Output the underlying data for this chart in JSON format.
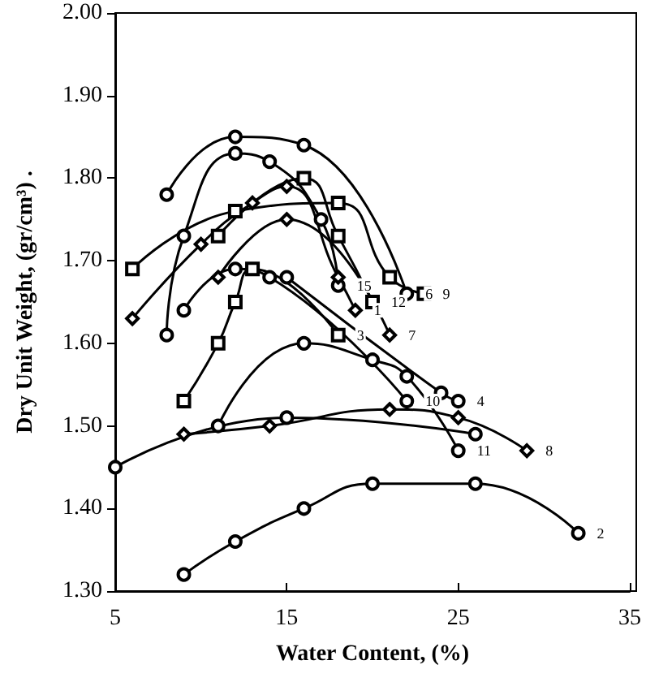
{
  "chart_data": {
    "type": "line",
    "xlabel": "Water Content, (%)",
    "ylabel": "Dry Unit Weight, (gr/cm³) .",
    "xlim": [
      5,
      35
    ],
    "xticks": [
      5,
      15,
      25,
      35
    ],
    "ylim": [
      1.3,
      2.0
    ],
    "yticks": [
      {
        "value": 1.3,
        "label": "1.30"
      },
      {
        "value": 1.4,
        "label": "1.40"
      },
      {
        "value": 1.5,
        "label": "1.50"
      },
      {
        "value": 1.6,
        "label": "1.60"
      },
      {
        "value": 1.7,
        "label": "1.70"
      },
      {
        "value": 1.8,
        "label": "1.80"
      },
      {
        "value": 1.9,
        "label": "1.90"
      },
      {
        "value": 2.0,
        "label": "2.00"
      }
    ],
    "grid": false,
    "legend": false,
    "series": [
      {
        "name": "2",
        "color": "#000000",
        "marker": "circle",
        "x": [
          9,
          12,
          16,
          20,
          26,
          32
        ],
        "values": [
          1.32,
          1.36,
          1.4,
          1.43,
          1.43,
          1.37
        ]
      },
      {
        "name": "6",
        "color": "#000000",
        "marker": "circle",
        "x": [
          8,
          12,
          16,
          22
        ],
        "values": [
          1.78,
          1.85,
          1.84,
          1.66
        ]
      },
      {
        "name": "9",
        "color": "#000000",
        "marker": "square",
        "x": [
          6,
          12,
          18,
          21,
          23
        ],
        "values": [
          1.69,
          1.76,
          1.77,
          1.68,
          1.66
        ]
      },
      {
        "name": "15",
        "color": "#000000",
        "marker": "circle",
        "x": [
          8,
          9,
          12,
          14,
          17,
          18
        ],
        "values": [
          1.61,
          1.73,
          1.83,
          1.82,
          1.75,
          1.67
        ]
      },
      {
        "name": "1",
        "color": "#000000",
        "marker": "diamond",
        "x": [
          6,
          10,
          13,
          15,
          18,
          19
        ],
        "values": [
          1.63,
          1.72,
          1.77,
          1.79,
          1.68,
          1.64
        ]
      },
      {
        "name": "12",
        "color": "#000000",
        "marker": "square",
        "x": [
          11,
          16,
          18,
          20
        ],
        "values": [
          1.73,
          1.8,
          1.73,
          1.65
        ]
      },
      {
        "name": "7",
        "color": "#000000",
        "marker": "diamond",
        "x": [
          11,
          15,
          21
        ],
        "values": [
          1.68,
          1.75,
          1.61
        ]
      },
      {
        "name": "3",
        "color": "#000000",
        "marker": "square",
        "x": [
          9,
          11,
          12,
          13,
          18
        ],
        "values": [
          1.53,
          1.6,
          1.65,
          1.69,
          1.61
        ]
      },
      {
        "name": "10",
        "color": "#000000",
        "marker": "circle",
        "x": [
          9,
          12,
          14,
          22
        ],
        "values": [
          1.64,
          1.69,
          1.68,
          1.53
        ]
      },
      {
        "name": "4",
        "color": "#000000",
        "marker": "circle",
        "x": [
          15,
          24,
          25
        ],
        "values": [
          1.68,
          1.54,
          1.53
        ]
      },
      {
        "name": "11",
        "color": "#000000",
        "marker": "circle",
        "x": [
          11,
          16,
          20,
          22,
          25
        ],
        "values": [
          1.5,
          1.6,
          1.58,
          1.56,
          1.47
        ]
      },
      {
        "name": "8",
        "color": "#000000",
        "marker": "diamond",
        "x": [
          9,
          14,
          21,
          25,
          29
        ],
        "values": [
          1.49,
          1.5,
          1.52,
          1.51,
          1.47
        ]
      },
      {
        "color": "#000000",
        "marker": "circle",
        "x": [
          5,
          15,
          26
        ],
        "values": [
          1.45,
          1.51,
          1.49
        ]
      }
    ]
  }
}
